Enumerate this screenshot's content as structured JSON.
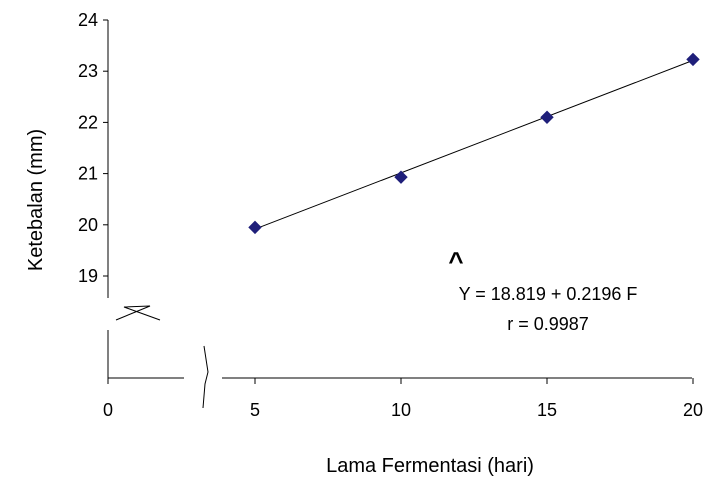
{
  "chart_data": {
    "type": "scatter",
    "xlabel": "Lama Fermentasi (hari)",
    "ylabel": "Ketebalan (mm)",
    "xlim": [
      0,
      20
    ],
    "ylim": [
      19,
      24
    ],
    "x_ticks": [
      "0",
      "5",
      "10",
      "15",
      "20"
    ],
    "y_ticks": [
      "19",
      "20",
      "21",
      "22",
      "23",
      "24"
    ],
    "series": [
      {
        "marker": "diamond",
        "color": "#1F1F7A",
        "x": [
          5,
          10,
          15,
          20
        ],
        "y": [
          19.95,
          20.93,
          22.1,
          23.23
        ]
      }
    ],
    "trendline": {
      "intercept": 18.819,
      "slope": 0.2196,
      "color": "#000000"
    },
    "axis_breaks": [
      "x",
      "y"
    ],
    "grid": false,
    "annotations": {
      "hat": "^",
      "equation": "Y = 18.819 + 0.2196 F",
      "r": "r = 0.9987"
    }
  }
}
